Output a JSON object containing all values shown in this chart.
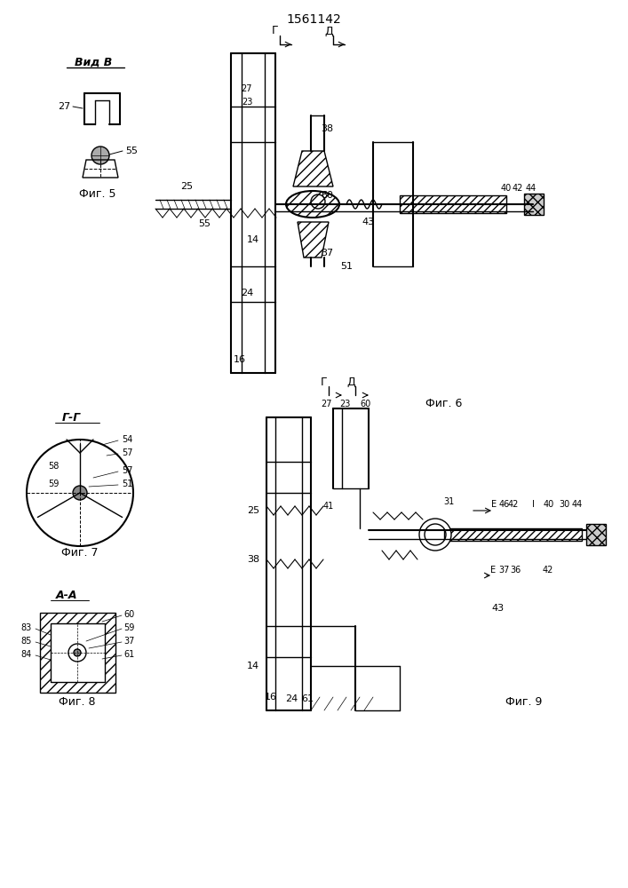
{
  "title": "1561142",
  "bg_color": "#ffffff",
  "line_color": "#000000",
  "hatch_color": "#000000",
  "fig_labels": {
    "fig5": "Фиг. 5",
    "fig6": "Фиг. 6",
    "fig7": "Фиг. 7",
    "fig8": "Фиг. 8",
    "fig9": "Фиг. 9"
  },
  "view_labels": {
    "vidB": "Вид В",
    "GG": "Г-Г",
    "AA": "А-А"
  }
}
